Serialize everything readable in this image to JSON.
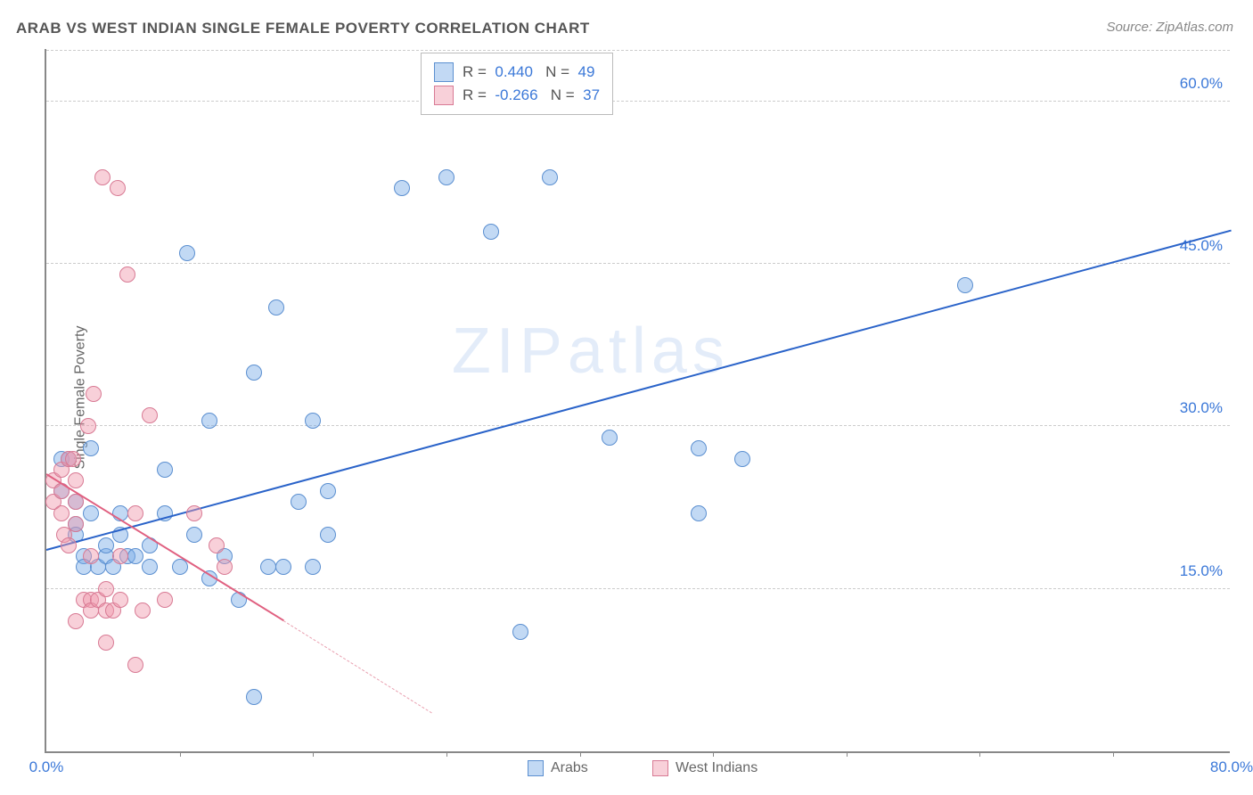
{
  "title_text": "ARAB VS WEST INDIAN SINGLE FEMALE POVERTY CORRELATION CHART",
  "source_text": "Source: ZipAtlas.com",
  "ylabel_text": "Single Female Poverty",
  "watermark_text": "ZIPatlas",
  "chart": {
    "type": "scatter",
    "xlim": [
      0,
      80
    ],
    "ylim": [
      0,
      65
    ],
    "yticks": [
      {
        "v": 15,
        "label": "15.0%"
      },
      {
        "v": 30,
        "label": "30.0%"
      },
      {
        "v": 45,
        "label": "45.0%"
      },
      {
        "v": 60,
        "label": "60.0%"
      }
    ],
    "xticks_major": [
      {
        "v": 0,
        "label": "0.0%"
      },
      {
        "v": 80,
        "label": "80.0%"
      }
    ],
    "xticks_minor": [
      9,
      18,
      27,
      36,
      45,
      54,
      63,
      72
    ],
    "xtick_label_color": "#3b78d8",
    "ytick_label_color": "#3b78d8",
    "grid_color": "#cccccc",
    "marker_radius": 9,
    "marker_stroke_width": 1.2,
    "series": [
      {
        "name": "Arabs",
        "fill": "rgba(120,170,230,0.45)",
        "stroke": "#5b8fd0",
        "legend_fill": "rgba(120,170,230,0.45)",
        "legend_stroke": "#5b8fd0",
        "corr_R": "0.440",
        "corr_N": "49",
        "trend": {
          "x1": 0,
          "y1": 18.5,
          "x2": 80,
          "y2": 48,
          "color": "#2a63c9",
          "width": 2.5,
          "dash": false
        },
        "points": [
          [
            1,
            24
          ],
          [
            1,
            27
          ],
          [
            1.5,
            27
          ],
          [
            2,
            23
          ],
          [
            2,
            21
          ],
          [
            2,
            20
          ],
          [
            2.5,
            18
          ],
          [
            2.5,
            17
          ],
          [
            3,
            22
          ],
          [
            3,
            28
          ],
          [
            3.5,
            17
          ],
          [
            4,
            18
          ],
          [
            4,
            19
          ],
          [
            4.5,
            17
          ],
          [
            5,
            20
          ],
          [
            5,
            22
          ],
          [
            5.5,
            18
          ],
          [
            6,
            18
          ],
          [
            7,
            17
          ],
          [
            7,
            19
          ],
          [
            8,
            26
          ],
          [
            8,
            22
          ],
          [
            9,
            17
          ],
          [
            9.5,
            46
          ],
          [
            10,
            20
          ],
          [
            11,
            16
          ],
          [
            11,
            30.5
          ],
          [
            12,
            18
          ],
          [
            13,
            14
          ],
          [
            14,
            35
          ],
          [
            14,
            5
          ],
          [
            15,
            17
          ],
          [
            15.5,
            41
          ],
          [
            16,
            17
          ],
          [
            17,
            23
          ],
          [
            18,
            17
          ],
          [
            18,
            30.5
          ],
          [
            19,
            24
          ],
          [
            19,
            20
          ],
          [
            24,
            52
          ],
          [
            27,
            53
          ],
          [
            30,
            48
          ],
          [
            32,
            11
          ],
          [
            34,
            53
          ],
          [
            38,
            29
          ],
          [
            44,
            22
          ],
          [
            44,
            28
          ],
          [
            47,
            27
          ],
          [
            62,
            43
          ]
        ]
      },
      {
        "name": "West Indians",
        "fill": "rgba(240,150,170,0.45)",
        "stroke": "#d87a94",
        "legend_fill": "rgba(240,150,170,0.45)",
        "legend_stroke": "#d87a94",
        "corr_R": "-0.266",
        "corr_N": "37",
        "trend_solid": {
          "x1": 0,
          "y1": 25.5,
          "x2": 16,
          "y2": 12,
          "color": "#e06080",
          "width": 2.2
        },
        "trend_dash": {
          "x1": 16,
          "y1": 12,
          "x2": 26,
          "y2": 3.5,
          "color": "#e9a0b0",
          "width": 1.4
        },
        "points": [
          [
            0.5,
            23
          ],
          [
            0.5,
            25
          ],
          [
            1,
            24
          ],
          [
            1,
            26
          ],
          [
            1,
            22
          ],
          [
            1.2,
            20
          ],
          [
            1.5,
            27
          ],
          [
            1.5,
            19
          ],
          [
            1.8,
            27
          ],
          [
            2,
            23
          ],
          [
            2,
            21
          ],
          [
            2,
            25
          ],
          [
            2,
            12
          ],
          [
            2.5,
            14
          ],
          [
            2.8,
            30
          ],
          [
            3,
            14
          ],
          [
            3,
            13
          ],
          [
            3,
            18
          ],
          [
            3.2,
            33
          ],
          [
            3.5,
            14
          ],
          [
            3.8,
            53
          ],
          [
            4,
            13
          ],
          [
            4,
            15
          ],
          [
            4,
            10
          ],
          [
            4.5,
            13
          ],
          [
            4.8,
            52
          ],
          [
            5,
            18
          ],
          [
            5,
            14
          ],
          [
            5.5,
            44
          ],
          [
            6,
            22
          ],
          [
            6,
            8
          ],
          [
            6.5,
            13
          ],
          [
            7,
            31
          ],
          [
            8,
            14
          ],
          [
            10,
            22
          ],
          [
            11.5,
            19
          ],
          [
            12,
            17
          ]
        ]
      }
    ],
    "legend_stats": {
      "R_label": "R =",
      "N_label": "N =",
      "value_color": "#3b78d8",
      "box_border": "#bbbbbb"
    },
    "bottom_legend": [
      {
        "label": "Arabs",
        "fill": "rgba(120,170,230,0.45)",
        "stroke": "#5b8fd0"
      },
      {
        "label": "West Indians",
        "fill": "rgba(240,150,170,0.45)",
        "stroke": "#d87a94"
      }
    ]
  }
}
